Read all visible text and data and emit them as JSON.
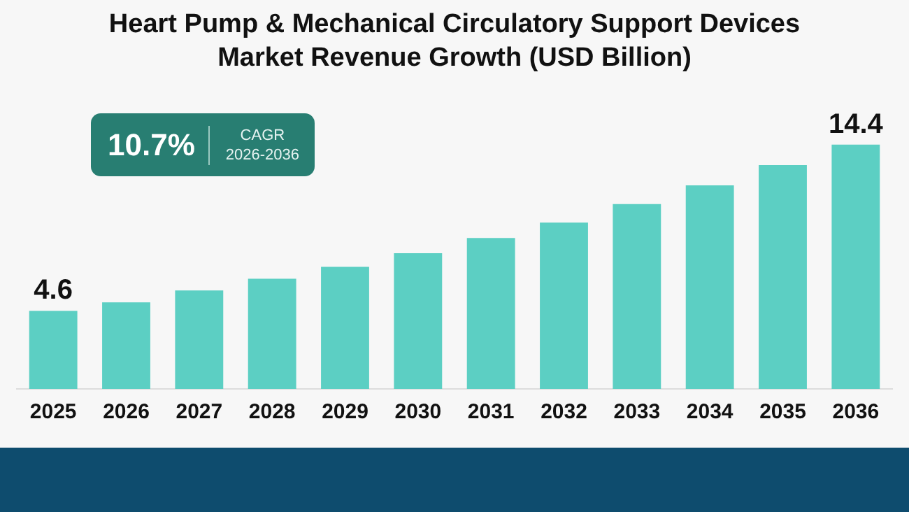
{
  "chart_data": {
    "type": "bar",
    "title": "Heart Pump & Mechanical Circulatory Support Devices Market Revenue Growth (USD Billion)",
    "categories": [
      "2025",
      "2026",
      "2027",
      "2028",
      "2029",
      "2030",
      "2031",
      "2032",
      "2033",
      "2034",
      "2035",
      "2036"
    ],
    "values": [
      4.6,
      5.1,
      5.8,
      6.5,
      7.2,
      8.0,
      8.9,
      9.8,
      10.9,
      12.0,
      13.2,
      14.4
    ],
    "color": "#5ccfc3",
    "value_labels": [
      "4.6",
      null,
      null,
      null,
      null,
      null,
      null,
      null,
      null,
      null,
      null,
      "14.4"
    ],
    "tick_labels": "x",
    "annotations": [
      "10.7%",
      "CAGR",
      "2026-2036"
    ],
    "grid": false,
    "legend": false
  }
}
